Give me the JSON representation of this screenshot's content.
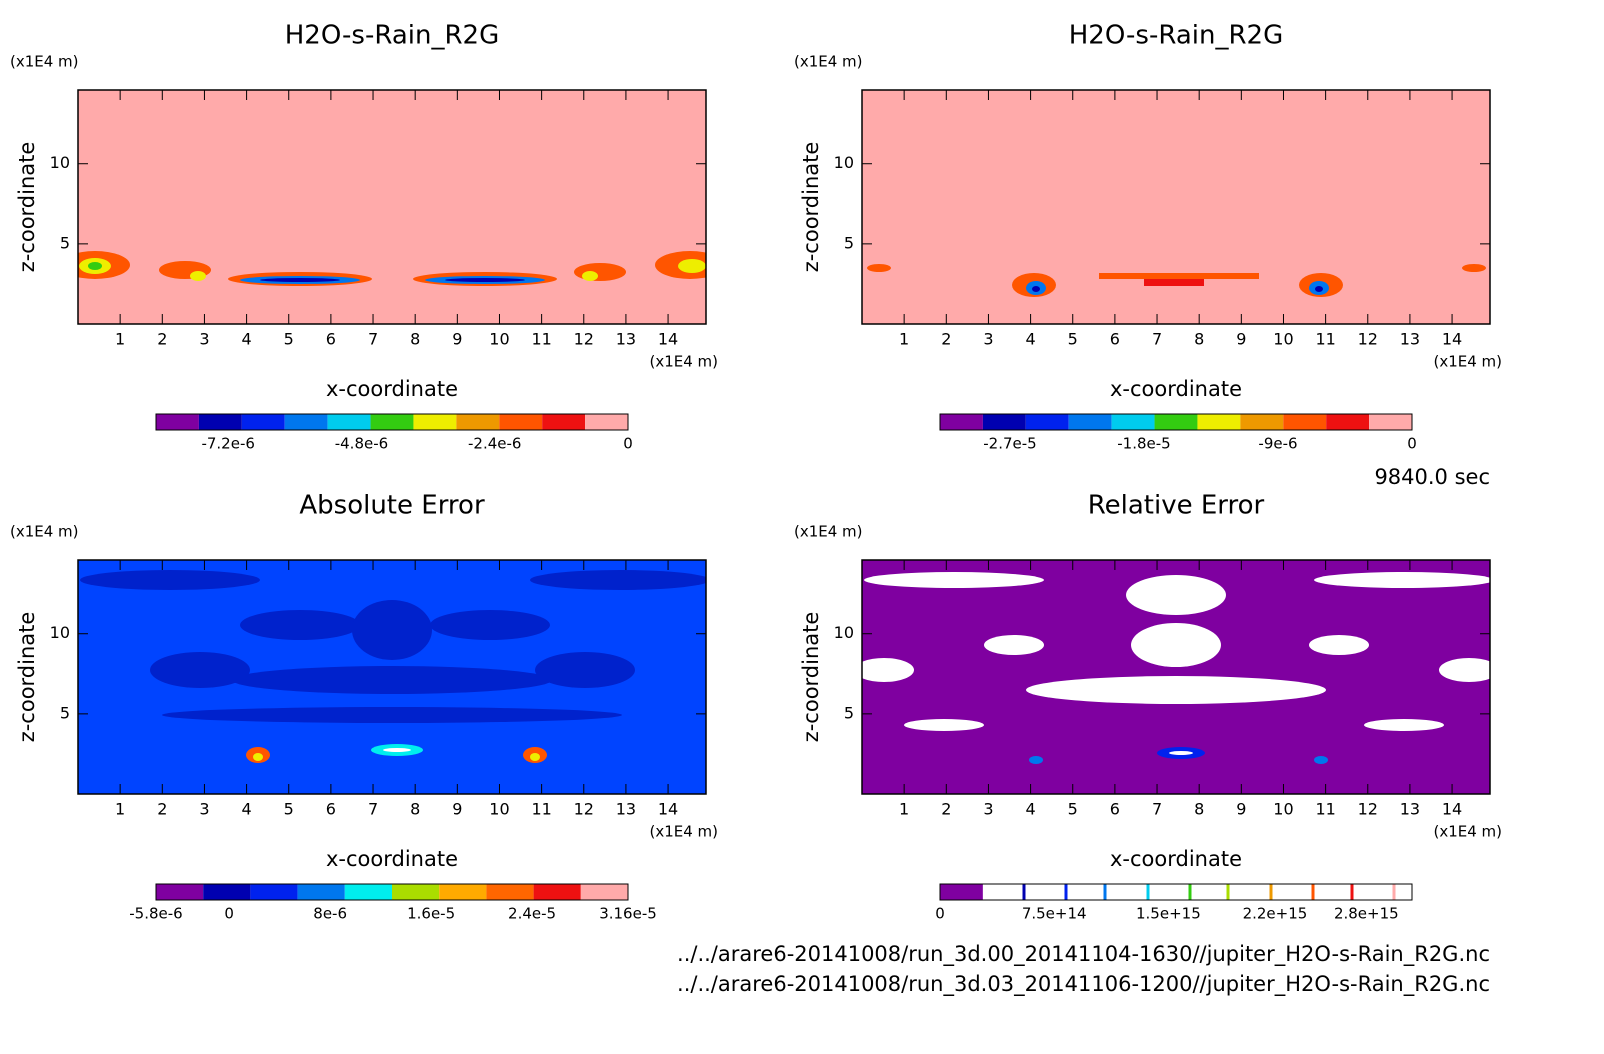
{
  "chart_data": [
    {
      "type": "contour",
      "title": "H2O-s-Rain_R2G",
      "xlabel": "x-coordinate",
      "ylabel": "z-coordinate",
      "x_unit": "(x1E4 m)",
      "y_unit": "(x1E4 m)",
      "xlim": [
        0,
        14.9
      ],
      "ylim": [
        0,
        14.6
      ],
      "xticks": [
        1,
        2,
        3,
        4,
        5,
        6,
        7,
        8,
        9,
        10,
        11,
        12,
        13,
        14
      ],
      "yticks": [
        5,
        10
      ],
      "background": "#ffaaaa",
      "colorbar": {
        "colors": [
          "#7f00a0",
          "#0000b0",
          "#0022ee",
          "#0077ee",
          "#00ccee",
          "#33cc11",
          "#eeee00",
          "#ee9900",
          "#ff5500",
          "#ee1111",
          "#ffaaaa"
        ],
        "clim": [
          -8.5e-06,
          0
        ],
        "ticks": [
          {
            "value": -7.2e-06,
            "label": "-7.2e-6"
          },
          {
            "value": -4.8e-06,
            "label": "-4.8e-6"
          },
          {
            "value": -2.4e-06,
            "label": "-2.4e-6"
          },
          0
        ]
      }
    },
    {
      "type": "contour",
      "title": "H2O-s-Rain_R2G",
      "xlabel": "x-coordinate",
      "ylabel": "z-coordinate",
      "x_unit": "(x1E4 m)",
      "y_unit": "(x1E4 m)",
      "xlim": [
        0,
        14.9
      ],
      "ylim": [
        0,
        14.6
      ],
      "xticks": [
        1,
        2,
        3,
        4,
        5,
        6,
        7,
        8,
        9,
        10,
        11,
        12,
        13,
        14
      ],
      "yticks": [
        5,
        10
      ],
      "background": "#ffaaaa",
      "colorbar": {
        "colors": [
          "#7f00a0",
          "#0000b0",
          "#0022ee",
          "#0077ee",
          "#00ccee",
          "#33cc11",
          "#eeee00",
          "#ee9900",
          "#ff5500",
          "#ee1111",
          "#ffaaaa"
        ],
        "clim": [
          -3.17e-05,
          0
        ],
        "ticks": [
          {
            "value": -2.7e-05,
            "label": "-2.7e-5"
          },
          {
            "value": -1.8e-05,
            "label": "-1.8e-5"
          },
          {
            "value": -9e-06,
            "label": "-9e-6"
          },
          0
        ]
      }
    },
    {
      "type": "contour",
      "title": "Absolute Error",
      "xlabel": "x-coordinate",
      "ylabel": "z-coordinate",
      "x_unit": "(x1E4 m)",
      "y_unit": "(x1E4 m)",
      "xlim": [
        0,
        14.9
      ],
      "ylim": [
        0,
        14.6
      ],
      "xticks": [
        1,
        2,
        3,
        4,
        5,
        6,
        7,
        8,
        9,
        10,
        11,
        12,
        13,
        14
      ],
      "yticks": [
        5,
        10
      ],
      "background": "#0044ff",
      "colorbar": {
        "colors": [
          "#7f00a0",
          "#0000b0",
          "#0022ee",
          "#0077ee",
          "#00eeee",
          "#aadd00",
          "#ffaa00",
          "#ff6600",
          "#ee1111",
          "#ffaaaa"
        ],
        "clim": [
          -5.8e-06,
          3.16e-05
        ],
        "ticks": [
          {
            "value": -5.8e-06,
            "label": "-5.8e-6"
          },
          0,
          {
            "value": 8e-06,
            "label": "8e-6"
          },
          {
            "value": 1.6e-05,
            "label": "1.6e-5"
          },
          {
            "value": 2.4e-05,
            "label": "2.4e-5"
          },
          {
            "value": 3.16e-05,
            "label": "3.16e-5"
          }
        ]
      }
    },
    {
      "type": "contour",
      "title": "Relative Error",
      "xlabel": "x-coordinate",
      "ylabel": "z-coordinate",
      "x_unit": "(x1E4 m)",
      "y_unit": "(x1E4 m)",
      "xlim": [
        0,
        14.9
      ],
      "ylim": [
        0,
        14.6
      ],
      "xticks": [
        1,
        2,
        3,
        4,
        5,
        6,
        7,
        8,
        9,
        10,
        11,
        12,
        13,
        14
      ],
      "yticks": [
        5,
        10
      ],
      "background": "#7f00a0",
      "colorbar": {
        "colors": [
          "#7f00a0",
          "#ffffff",
          "#ffffff",
          "#ffffff",
          "#ffffff",
          "#ffffff",
          "#ffffff",
          "#ffffff",
          "#ffffff",
          "#ffffff",
          "#ffffff"
        ],
        "clim": [
          0,
          3100000000000000
        ],
        "ticks": [
          0,
          {
            "value": 750000000000000,
            "label": "7.5e+14"
          },
          {
            "value": 1500000000000000,
            "label": "1.5e+15"
          },
          {
            "value": 2200000000000000,
            "label": "2.2e+15"
          },
          {
            "value": 2800000000000000,
            "label": "2.8e+15"
          }
        ]
      }
    }
  ],
  "time": "9840.0 sec",
  "files": [
    "../../arare6-20141008/run_3d.00_20141104-1630//jupiter_H2O-s-Rain_R2G.nc",
    "../../arare6-20141008/run_3d.03_20141106-1200//jupiter_H2O-s-Rain_R2G.nc"
  ]
}
